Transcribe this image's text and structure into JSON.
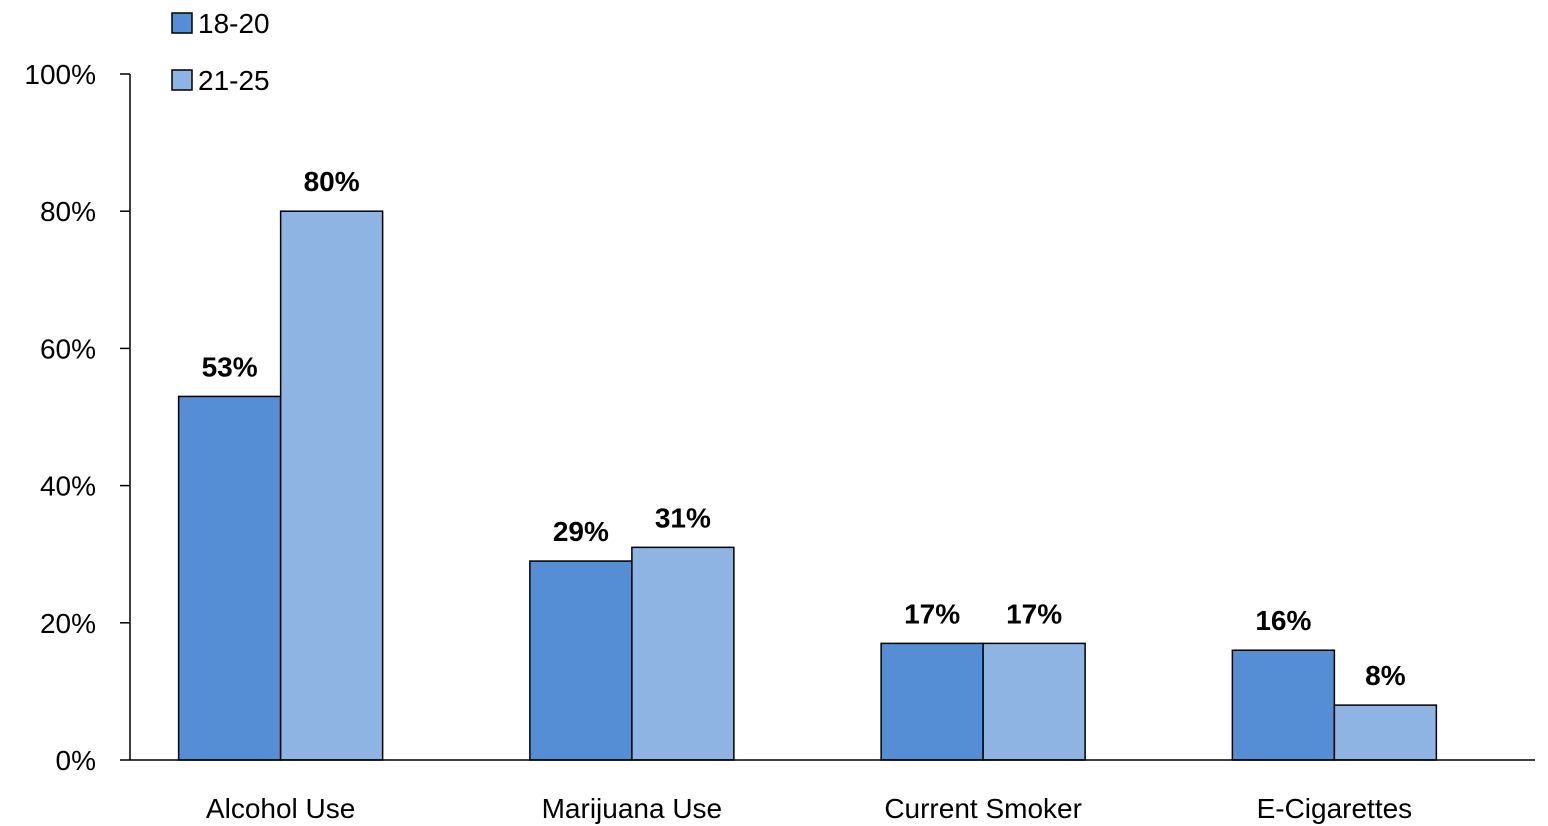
{
  "chart_data": {
    "type": "bar",
    "categories": [
      "Alcohol Use",
      "Marijuana Use",
      "Current Smoker",
      "E-Cigarettes"
    ],
    "series": [
      {
        "name": "18-20",
        "values": [
          53,
          29,
          17,
          16
        ],
        "labels": [
          "53%",
          "29%",
          "17%",
          "16%"
        ],
        "color": "#558ed5"
      },
      {
        "name": "21-25",
        "values": [
          80,
          31,
          17,
          8
        ],
        "labels": [
          "80%",
          "31%",
          "17%",
          "8%"
        ],
        "color": "#8eb4e3"
      }
    ],
    "ylim": [
      0,
      100
    ],
    "yticks": [
      0,
      20,
      40,
      60,
      80,
      100
    ],
    "ytick_labels": [
      "0%",
      "20%",
      "40%",
      "60%",
      "80%",
      "100%"
    ],
    "legend_position": "top-left",
    "grid": false,
    "title": "",
    "xlabel": "",
    "ylabel": ""
  }
}
